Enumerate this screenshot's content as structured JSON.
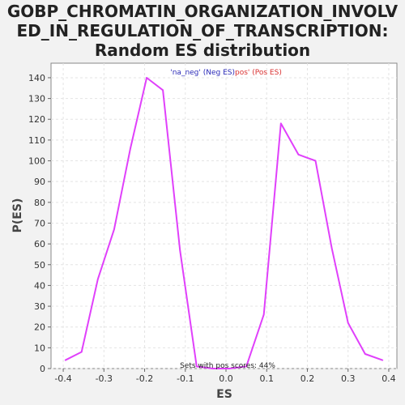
{
  "chart_data": {
    "type": "line",
    "title_lines": [
      "GOBP_CHROMATIN_ORGANIZATION_INVOLV",
      "ED_IN_REGULATION_OF_TRANSCRIPTION:",
      "Random ES distribution"
    ],
    "xlabel": "ES",
    "ylabel": "P(ES)",
    "xlim": [
      -0.43,
      0.42
    ],
    "ylim": [
      0,
      147
    ],
    "x_ticks": [
      -0.4,
      -0.3,
      -0.2,
      -0.1,
      0.0,
      0.1,
      0.2,
      0.3,
      0.4
    ],
    "x_tick_labels": [
      "-0.4",
      "-0.3",
      "-0.2",
      "-0.1",
      "0.0",
      "0.1",
      "0.2",
      "0.3",
      "0.4"
    ],
    "y_ticks": [
      0,
      10,
      20,
      30,
      40,
      50,
      60,
      70,
      80,
      90,
      100,
      110,
      120,
      130,
      140
    ],
    "y_tick_labels": [
      "0",
      "10",
      "20",
      "30",
      "40",
      "50",
      "60",
      "70",
      "80",
      "90",
      "100",
      "110",
      "120",
      "130",
      "140"
    ],
    "grid": true,
    "legend": [
      {
        "text": "'na_neg' (Neg ES)",
        "color": "#2a2ab8"
      },
      {
        "text": "pos' (Pos ES)",
        "color": "#d93030"
      }
    ],
    "legend_position": "top-center",
    "annotation": "Sets with pos scores: 44%",
    "series": [
      {
        "color": "#e040fb",
        "x": [
          -0.395,
          -0.355,
          -0.315,
          -0.275,
          -0.235,
          -0.195,
          -0.155,
          -0.113,
          -0.072,
          -0.032,
          0.008,
          0.05,
          0.093,
          0.135,
          0.178,
          0.22,
          0.26,
          0.3,
          0.342,
          0.385
        ],
        "y": [
          4,
          8,
          43,
          67,
          106,
          140,
          134,
          57,
          1,
          0,
          0,
          1,
          26,
          118,
          103,
          100,
          58,
          22,
          7,
          4
        ]
      }
    ]
  }
}
